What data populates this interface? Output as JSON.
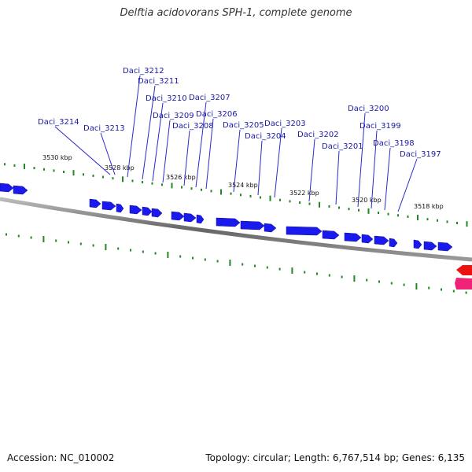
{
  "header": {
    "title": "Delftia acidovorans SPH-1, complete genome"
  },
  "footer": {
    "accession": "Accession: NC_010002",
    "stats": "Topology: circular; Length: 6,767,514 bp; Genes: 6,135"
  },
  "map": {
    "colors": {
      "gene_forward": "#1a1aee",
      "gene_reverse_red": "#ee1111",
      "gene_reverse_pink": "#ee2277",
      "tick": "#228822",
      "backbone": "#777777"
    },
    "tick_labels": [
      "3530 kbp",
      "3528 kbp",
      "3526 kbp",
      "3524 kbp",
      "3522 kbp",
      "3520 kbp",
      "3518 kbp"
    ],
    "gene_labels": [
      "Daci_3214",
      "Daci_3213",
      "Daci_3212",
      "Daci_3211",
      "Daci_3210",
      "Daci_3209",
      "Daci_3208",
      "Daci_3207",
      "Daci_3206",
      "Daci_3205",
      "Daci_3204",
      "Daci_3203",
      "Daci_3202",
      "Daci_3201",
      "Daci_3200",
      "Daci_3199",
      "Daci_3198",
      "Daci_3197"
    ]
  }
}
